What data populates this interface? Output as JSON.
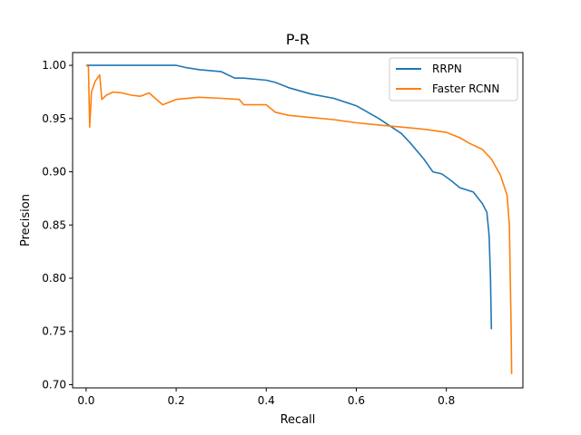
{
  "chart_data": {
    "type": "line",
    "title": "P-R",
    "xlabel": "Recall",
    "ylabel": "Precision",
    "xlim": [
      -0.03,
      0.97
    ],
    "ylim": [
      0.697,
      1.012
    ],
    "xticks": [
      "0.0",
      "0.2",
      "0.4",
      "0.6",
      "0.8"
    ],
    "yticks": [
      "0.70",
      "0.75",
      "0.80",
      "0.85",
      "0.90",
      "0.95",
      "1.00"
    ],
    "grid": false,
    "legend_position": "top-right",
    "series": [
      {
        "name": "RRPN",
        "color": "#1f77b4",
        "points": [
          [
            0.0,
            1.0
          ],
          [
            0.05,
            1.0
          ],
          [
            0.1,
            1.0
          ],
          [
            0.15,
            1.0
          ],
          [
            0.2,
            1.0
          ],
          [
            0.22,
            0.998
          ],
          [
            0.25,
            0.996
          ],
          [
            0.3,
            0.994
          ],
          [
            0.33,
            0.988
          ],
          [
            0.35,
            0.988
          ],
          [
            0.4,
            0.986
          ],
          [
            0.42,
            0.984
          ],
          [
            0.45,
            0.979
          ],
          [
            0.5,
            0.973
          ],
          [
            0.55,
            0.969
          ],
          [
            0.6,
            0.962
          ],
          [
            0.65,
            0.95
          ],
          [
            0.7,
            0.936
          ],
          [
            0.72,
            0.927
          ],
          [
            0.75,
            0.912
          ],
          [
            0.77,
            0.9
          ],
          [
            0.79,
            0.898
          ],
          [
            0.81,
            0.892
          ],
          [
            0.83,
            0.885
          ],
          [
            0.86,
            0.881
          ],
          [
            0.88,
            0.87
          ],
          [
            0.89,
            0.862
          ],
          [
            0.895,
            0.84
          ],
          [
            0.898,
            0.8
          ],
          [
            0.9,
            0.752
          ]
        ]
      },
      {
        "name": "Faster RCNN",
        "color": "#ff7f0e",
        "points": [
          [
            0.0,
            1.0
          ],
          [
            0.005,
            0.999
          ],
          [
            0.008,
            0.942
          ],
          [
            0.012,
            0.975
          ],
          [
            0.02,
            0.985
          ],
          [
            0.03,
            0.991
          ],
          [
            0.035,
            0.968
          ],
          [
            0.045,
            0.972
          ],
          [
            0.06,
            0.975
          ],
          [
            0.08,
            0.974
          ],
          [
            0.1,
            0.972
          ],
          [
            0.12,
            0.971
          ],
          [
            0.14,
            0.974
          ],
          [
            0.17,
            0.963
          ],
          [
            0.2,
            0.968
          ],
          [
            0.25,
            0.97
          ],
          [
            0.3,
            0.969
          ],
          [
            0.34,
            0.968
          ],
          [
            0.35,
            0.963
          ],
          [
            0.4,
            0.963
          ],
          [
            0.42,
            0.956
          ],
          [
            0.45,
            0.953
          ],
          [
            0.5,
            0.951
          ],
          [
            0.55,
            0.949
          ],
          [
            0.6,
            0.946
          ],
          [
            0.65,
            0.944
          ],
          [
            0.7,
            0.942
          ],
          [
            0.75,
            0.94
          ],
          [
            0.8,
            0.937
          ],
          [
            0.83,
            0.932
          ],
          [
            0.85,
            0.927
          ],
          [
            0.88,
            0.921
          ],
          [
            0.9,
            0.912
          ],
          [
            0.92,
            0.897
          ],
          [
            0.935,
            0.878
          ],
          [
            0.94,
            0.85
          ],
          [
            0.942,
            0.8
          ],
          [
            0.944,
            0.75
          ],
          [
            0.945,
            0.71
          ]
        ]
      }
    ]
  }
}
